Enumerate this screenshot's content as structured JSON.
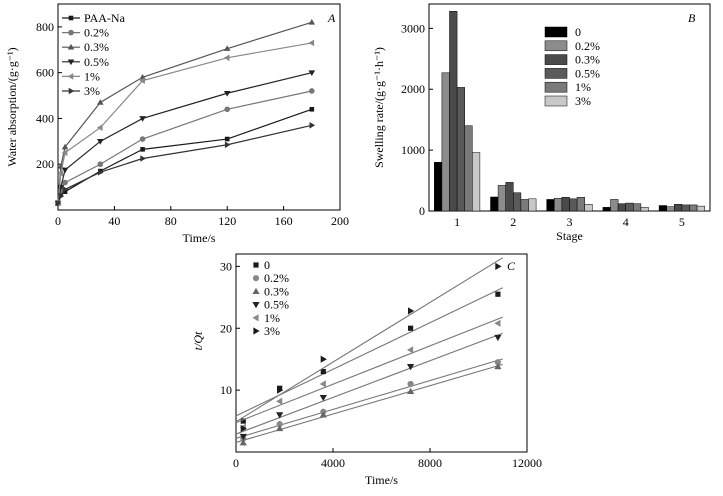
{
  "chart_data": [
    {
      "panel": "A",
      "type": "line",
      "xlabel": "Time/s",
      "ylabel": "Water absorption/(g·g⁻¹)",
      "xlim": [
        0,
        200
      ],
      "ylim": [
        0,
        900
      ],
      "xticks": [
        0,
        40,
        80,
        120,
        160,
        200
      ],
      "yticks": [
        200,
        400,
        600,
        800
      ],
      "legend_position": "top-left",
      "x": [
        0,
        2,
        5,
        30,
        60,
        120,
        180
      ],
      "series": [
        {
          "name": "PAA-Na",
          "marker": "square",
          "color": "#1a1a1a",
          "values": [
            30,
            70,
            80,
            170,
            265,
            310,
            440
          ]
        },
        {
          "name": "0.2%",
          "marker": "circle",
          "color": "#777777",
          "values": [
            30,
            85,
            120,
            200,
            310,
            440,
            520
          ]
        },
        {
          "name": "0.3%",
          "marker": "triangle-up",
          "color": "#555555",
          "values": [
            30,
            190,
            275,
            470,
            580,
            705,
            820
          ]
        },
        {
          "name": "0.5%",
          "marker": "triangle-down",
          "color": "#222222",
          "values": [
            30,
            100,
            175,
            300,
            400,
            510,
            600
          ]
        },
        {
          "name": "1%",
          "marker": "triangle-left",
          "color": "#888888",
          "values": [
            30,
            160,
            250,
            360,
            565,
            665,
            730
          ]
        },
        {
          "name": "3%",
          "marker": "triangle-right",
          "color": "#333333",
          "values": [
            30,
            60,
            90,
            165,
            225,
            285,
            370
          ]
        }
      ]
    },
    {
      "panel": "B",
      "type": "bar",
      "xlabel": "Stage",
      "ylabel": "Swelling rate/(g·g⁻¹·h⁻¹)",
      "categories": [
        "1",
        "2",
        "3",
        "4",
        "5"
      ],
      "ylim": [
        0,
        3400
      ],
      "yticks": [
        0,
        1000,
        2000,
        3000
      ],
      "legend_position": "top-right",
      "series": [
        {
          "name": "0",
          "color": "#000000",
          "values": [
            800,
            230,
            190,
            60,
            90
          ]
        },
        {
          "name": "0.2%",
          "color": "#8c8c8c",
          "values": [
            2270,
            420,
            210,
            190,
            70
          ]
        },
        {
          "name": "0.3%",
          "color": "#4a4a4a",
          "values": [
            3280,
            470,
            225,
            120,
            110
          ]
        },
        {
          "name": "0.5%",
          "color": "#5a5a5a",
          "values": [
            2030,
            300,
            200,
            130,
            100
          ]
        },
        {
          "name": "1%",
          "color": "#7a7a7a",
          "values": [
            1400,
            190,
            225,
            120,
            100
          ]
        },
        {
          "name": "3%",
          "color": "#c8c8c8",
          "values": [
            960,
            200,
            110,
            60,
            80
          ]
        }
      ]
    },
    {
      "panel": "C",
      "type": "scatter",
      "xlabel": "Time/s",
      "ylabel": "t/Qt",
      "xlim": [
        0,
        12000
      ],
      "ylim": [
        0,
        32
      ],
      "xticks": [
        0,
        4000,
        8000,
        12000
      ],
      "yticks": [
        10,
        20,
        30
      ],
      "legend_position": "top-left",
      "x": [
        300,
        1800,
        3600,
        7200,
        10800
      ],
      "series": [
        {
          "name": "0",
          "marker": "square",
          "color": "#1a1a1a",
          "values": [
            5,
            10.3,
            13,
            20,
            25.5
          ]
        },
        {
          "name": "0.2%",
          "marker": "circle",
          "color": "#888888",
          "values": [
            2.2,
            4.5,
            6.5,
            11,
            14.5
          ]
        },
        {
          "name": "0.3%",
          "marker": "triangle-up",
          "color": "#666666",
          "values": [
            1.5,
            3.8,
            6,
            9.8,
            13.8
          ]
        },
        {
          "name": "0.5%",
          "marker": "triangle-down",
          "color": "#222222",
          "values": [
            2.5,
            6,
            8.8,
            13.8,
            18.5
          ]
        },
        {
          "name": "1%",
          "marker": "triangle-left",
          "color": "#888888",
          "values": [
            4,
            8.2,
            11,
            16.5,
            20.8
          ]
        },
        {
          "name": "3%",
          "marker": "triangle-right",
          "color": "#1a1a1a",
          "values": [
            3.8,
            10,
            15,
            22.8,
            30
          ]
        }
      ]
    }
  ]
}
